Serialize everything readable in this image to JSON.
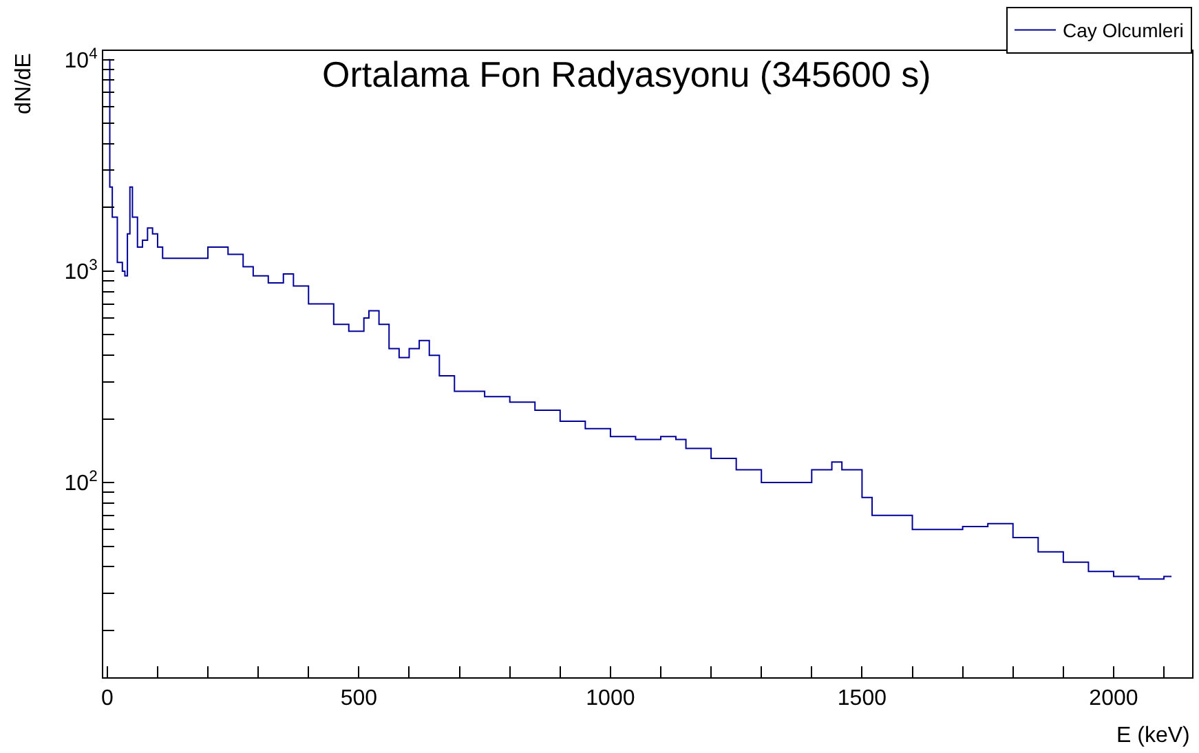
{
  "chart_data": {
    "type": "step",
    "title": "Ortalama Fon Radyasyonu (345600 s)",
    "xlabel": "E (keV)",
    "ylabel": "dN/dE",
    "log": "y",
    "legend": "top right",
    "marker": "none",
    "line_style": "solid",
    "x": [
      2,
      5,
      10,
      20,
      30,
      35,
      40,
      45,
      50,
      60,
      70,
      80,
      90,
      100,
      110,
      150,
      200,
      240,
      270,
      290,
      320,
      350,
      370,
      400,
      450,
      480,
      510,
      520,
      540,
      560,
      580,
      600,
      620,
      640,
      660,
      690,
      750,
      800,
      850,
      900,
      950,
      1000,
      1050,
      1100,
      1130,
      1150,
      1200,
      1250,
      1300,
      1350,
      1400,
      1440,
      1460,
      1500,
      1520,
      1600,
      1650,
      1700,
      1750,
      1800,
      1850,
      1900,
      1950,
      2000,
      2050,
      2100,
      2115
    ],
    "series": [
      {
        "name": "Cay Olcumleri",
        "color": "#000099",
        "values": [
          10000,
          2500,
          1800,
          1100,
          1000,
          950,
          1500,
          2500,
          1800,
          1300,
          1400,
          1600,
          1500,
          1300,
          1150,
          1150,
          1300,
          1200,
          1050,
          950,
          880,
          970,
          850,
          700,
          560,
          520,
          600,
          650,
          560,
          430,
          390,
          430,
          470,
          400,
          320,
          270,
          255,
          240,
          220,
          195,
          180,
          165,
          160,
          165,
          160,
          145,
          130,
          115,
          100,
          100,
          115,
          125,
          115,
          85,
          70,
          60,
          60,
          62,
          64,
          55,
          47,
          42,
          38,
          36,
          35,
          36,
          36
        ]
      }
    ],
    "xlim": [
      -8,
      2156
    ],
    "ylim": [
      12,
      11000
    ],
    "xticks": [
      0,
      {
        "value": 100,
        "label": null
      },
      {
        "value": 200,
        "label": null
      },
      {
        "value": 300,
        "label": null
      },
      {
        "value": 400,
        "label": null
      },
      500,
      {
        "value": 600,
        "label": null
      },
      {
        "value": 700,
        "label": null
      },
      {
        "value": 800,
        "label": null
      },
      {
        "value": 900,
        "label": null
      },
      1000,
      {
        "value": 1100,
        "label": null
      },
      {
        "value": 1200,
        "label": null
      },
      {
        "value": 1300,
        "label": null
      },
      {
        "value": 1400,
        "label": null
      },
      1500,
      {
        "value": 1600,
        "label": null
      },
      {
        "value": 1700,
        "label": null
      },
      {
        "value": 1800,
        "label": null
      },
      {
        "value": 1900,
        "label": null
      },
      2000,
      {
        "value": 2100,
        "label": null
      }
    ],
    "yticks": [
      {
        "value": 20,
        "label": null
      },
      {
        "value": 30,
        "label": null
      },
      {
        "value": 40,
        "label": null
      },
      {
        "value": 50,
        "label": null
      },
      {
        "value": 60,
        "label": null
      },
      {
        "value": 70,
        "label": null
      },
      {
        "value": 80,
        "label": null
      },
      {
        "value": 90,
        "label": null
      },
      {
        "value": 100,
        "label": "10$^{2}$"
      },
      {
        "value": 200,
        "label": null
      },
      {
        "value": 300,
        "label": null
      },
      {
        "value": 400,
        "label": null
      },
      {
        "value": 500,
        "label": null
      },
      {
        "value": 600,
        "label": null
      },
      {
        "value": 700,
        "label": null
      },
      {
        "value": 800,
        "label": null
      },
      {
        "value": 900,
        "label": null
      },
      {
        "value": 1000,
        "label": "10$^{3}$"
      },
      {
        "value": 2000,
        "label": null
      },
      {
        "value": 3000,
        "label": null
      },
      {
        "value": 4000,
        "label": null
      },
      {
        "value": 5000,
        "label": null
      },
      {
        "value": 6000,
        "label": null
      },
      {
        "value": 7000,
        "label": null
      },
      {
        "value": 8000,
        "label": null
      },
      {
        "value": 9000,
        "label": null
      },
      {
        "value": 10000,
        "label": "10$^{4}$"
      }
    ]
  }
}
